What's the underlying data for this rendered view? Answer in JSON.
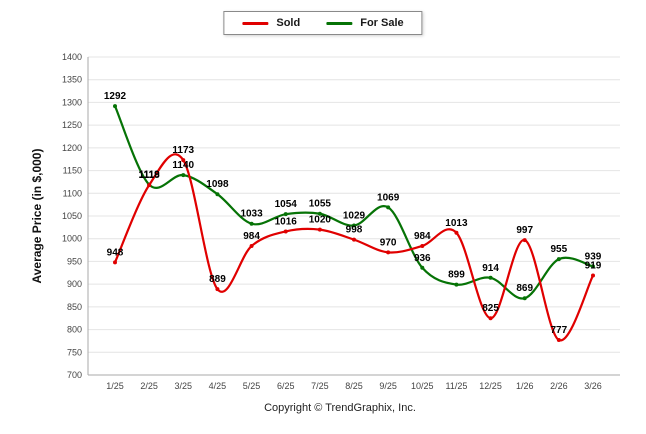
{
  "legend": {
    "sold": "Sold",
    "for_sale": "For Sale"
  },
  "footer": {
    "copyright": "Copyright © TrendGraphix, Inc."
  },
  "chart_data": {
    "type": "line",
    "title": "",
    "ylabel": "Average Price (in $,000)",
    "xlabel": "",
    "ylim": [
      700,
      1400
    ],
    "ytick_step": 50,
    "grid": true,
    "legend_position": "top-center",
    "line_style": "smooth",
    "categories": [
      "1/25",
      "2/25",
      "3/25",
      "4/25",
      "5/25",
      "6/25",
      "7/25",
      "8/25",
      "9/25",
      "10/25",
      "11/25",
      "12/25",
      "1/26",
      "2/26",
      "3/26"
    ],
    "series": [
      {
        "name": "Sold",
        "color": "#e00000",
        "values": [
          948,
          1118,
          1173,
          889,
          984,
          1016,
          1020,
          998,
          970,
          984,
          1013,
          825,
          997,
          777,
          919
        ]
      },
      {
        "name": "For Sale",
        "color": "#067306",
        "values": [
          1292,
          1119,
          1140,
          1098,
          1033,
          1054,
          1055,
          1029,
          1069,
          936,
          899,
          914,
          869,
          955,
          939
        ]
      }
    ]
  }
}
